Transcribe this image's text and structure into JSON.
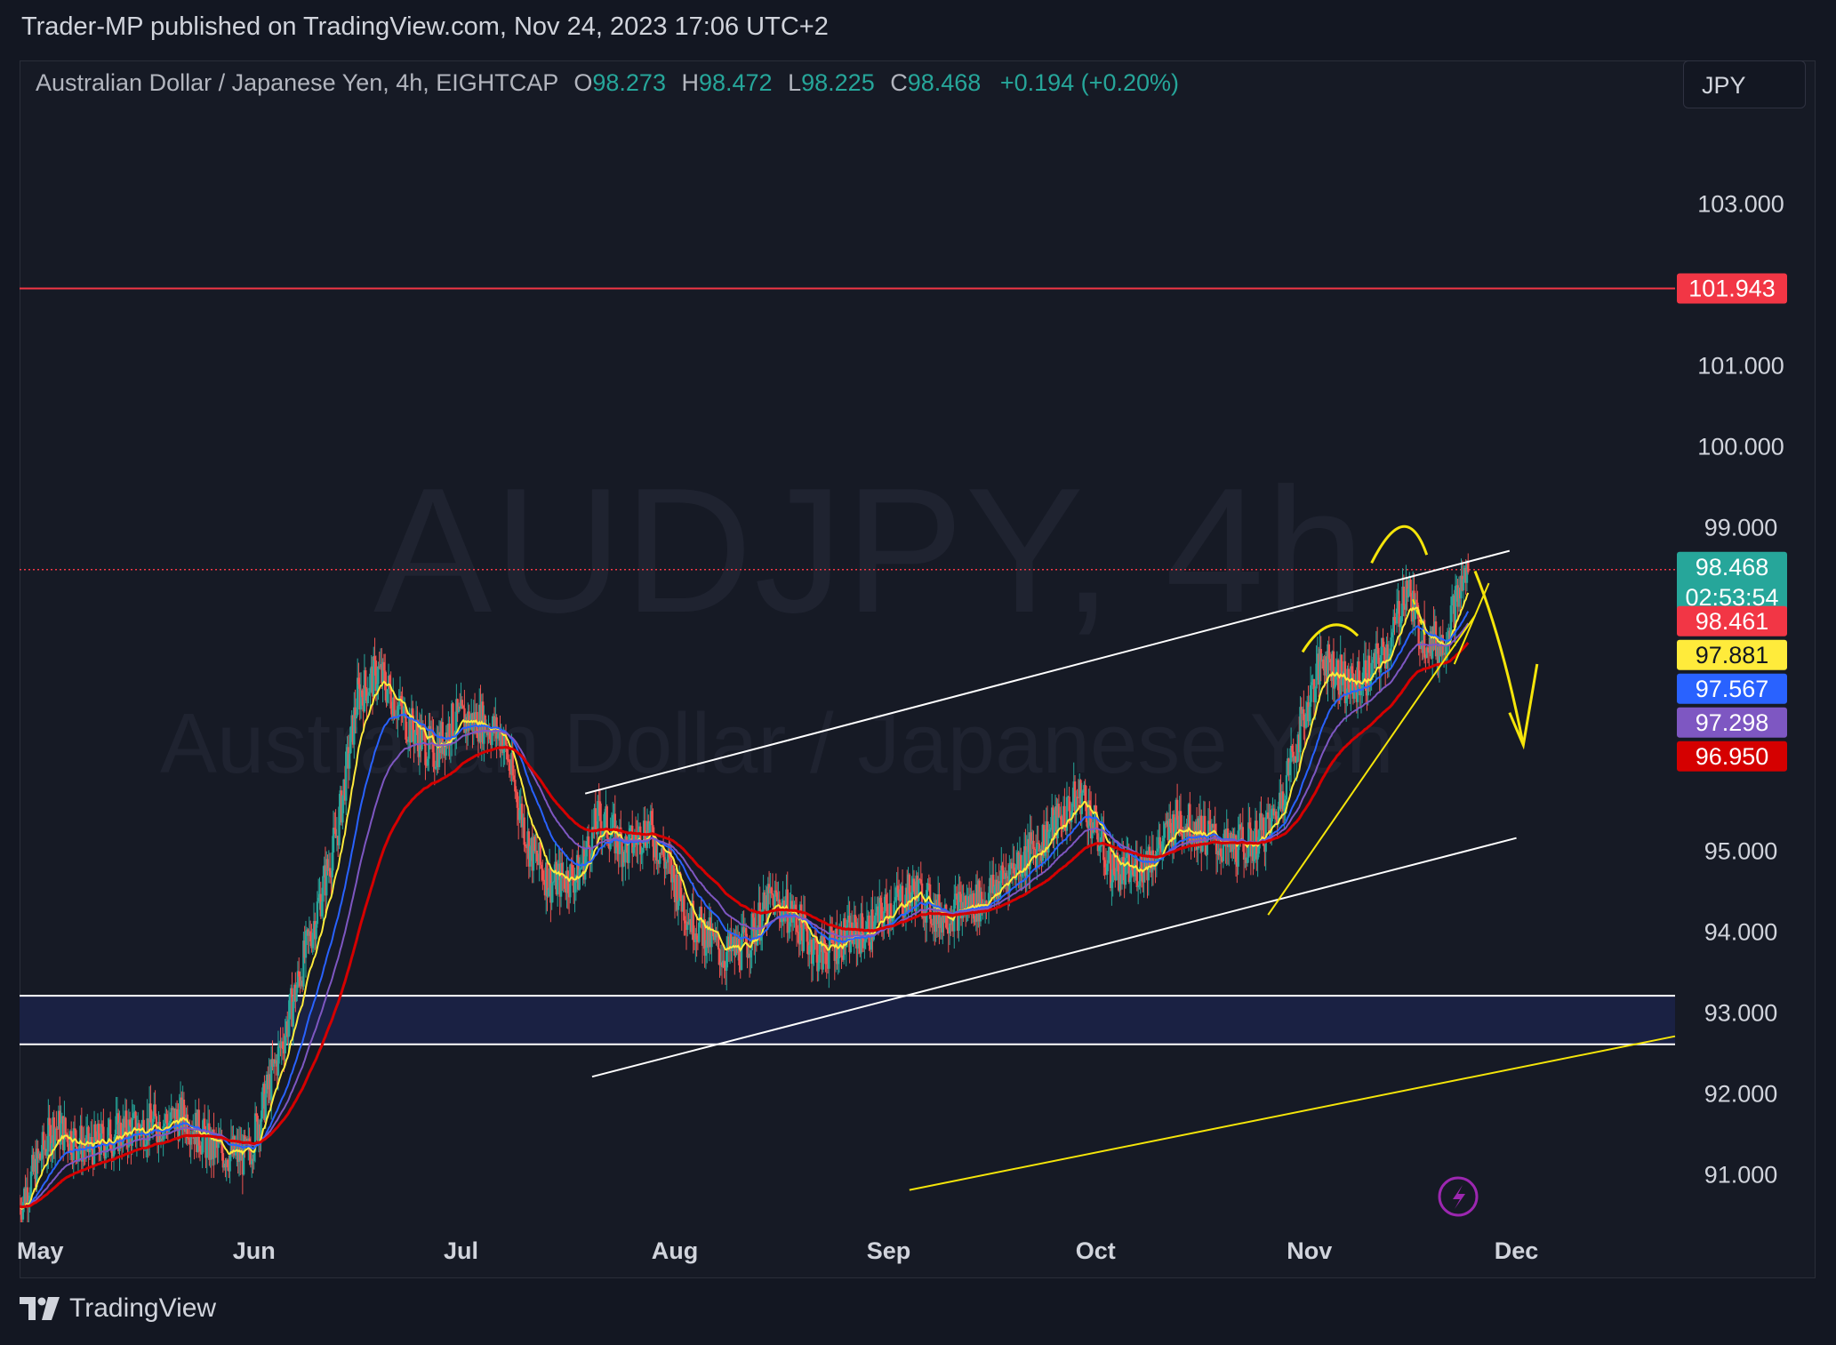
{
  "header": {
    "published_text": "Trader-MP published on TradingView.com, Nov 24, 2023 17:06 UTC+2"
  },
  "legend": {
    "title": "Australian Dollar / Japanese Yen, 4h, EIGHTCAP",
    "open_label": "O",
    "open": "98.273",
    "high_label": "H",
    "high": "98.472",
    "low_label": "L",
    "low": "98.225",
    "close_label": "C",
    "close": "98.468",
    "change": "+0.194 (+0.20%)"
  },
  "currency_button": "JPY",
  "watermark": {
    "symbol": "AUDJPY, 4h",
    "name": "Australian Dollar / Japanese Yen"
  },
  "footer": {
    "brand": "TradingView"
  },
  "colors": {
    "background": "#131722",
    "candle_up": "#26a69a",
    "candle_down": "#ef5350",
    "ema_yellow": "#ffeb3b",
    "ema_blue": "#2962ff",
    "ema_purple": "#7e57c2",
    "ema_red": "#d50000",
    "annotation_yellow": "#f5e50a",
    "channel_white": "#ffffff",
    "resistance_red": "#f23645"
  },
  "chart_data": {
    "type": "line",
    "symbol": "AUDJPY",
    "timeframe": "4h",
    "ylim": [
      90.4,
      104.3
    ],
    "y_ticks": [
      "103.000",
      "101.000",
      "100.000",
      "99.000",
      "95.000",
      "94.000",
      "93.000",
      "92.000",
      "91.000"
    ],
    "y_tick_values": [
      103,
      101,
      100,
      99,
      95,
      94,
      93,
      92,
      91
    ],
    "x_ticks": [
      "May",
      "Jun",
      "Jul",
      "Aug",
      "Sep",
      "Oct",
      "Nov",
      "Dec"
    ],
    "x_tick_values": [
      "2023-05-01",
      "2023-06-01",
      "2023-07-01",
      "2023-08-01",
      "2023-09-01",
      "2023-10-01",
      "2023-11-01",
      "2023-12-01"
    ],
    "xlim": [
      "2023-04-28",
      "2023-12-24"
    ],
    "price_path": {
      "dates": [
        "2023-04-28",
        "2023-05-03",
        "2023-05-08",
        "2023-05-12",
        "2023-05-17",
        "2023-05-22",
        "2023-05-26",
        "2023-05-31",
        "2023-06-05",
        "2023-06-09",
        "2023-06-13",
        "2023-06-16",
        "2023-06-19",
        "2023-06-23",
        "2023-06-27",
        "2023-06-30",
        "2023-07-04",
        "2023-07-07",
        "2023-07-11",
        "2023-07-14",
        "2023-07-18",
        "2023-07-21",
        "2023-07-25",
        "2023-07-28",
        "2023-07-31",
        "2023-08-03",
        "2023-08-08",
        "2023-08-11",
        "2023-08-15",
        "2023-08-18",
        "2023-08-22",
        "2023-08-25",
        "2023-08-29",
        "2023-09-01",
        "2023-09-05",
        "2023-09-08",
        "2023-09-12",
        "2023-09-15",
        "2023-09-19",
        "2023-09-22",
        "2023-09-26",
        "2023-09-29",
        "2023-10-03",
        "2023-10-06",
        "2023-10-10",
        "2023-10-13",
        "2023-10-17",
        "2023-10-20",
        "2023-10-24",
        "2023-10-27",
        "2023-10-31",
        "2023-11-03",
        "2023-11-07",
        "2023-11-10",
        "2023-11-13",
        "2023-11-15",
        "2023-11-17",
        "2023-11-20",
        "2023-11-22",
        "2023-11-24"
      ],
      "close": [
        90.6,
        91.6,
        91.3,
        91.5,
        91.6,
        91.7,
        91.3,
        91.2,
        92.6,
        93.9,
        95.2,
        96.9,
        97.2,
        96.6,
        96.2,
        96.6,
        96.6,
        96.4,
        95.0,
        94.6,
        94.7,
        95.4,
        95.0,
        95.3,
        94.8,
        94.2,
        93.7,
        93.8,
        94.4,
        94.2,
        93.7,
        93.9,
        94.0,
        94.3,
        94.5,
        94.2,
        94.3,
        94.4,
        94.8,
        95.0,
        95.4,
        95.7,
        94.8,
        94.7,
        95.0,
        95.4,
        95.2,
        95.0,
        95.1,
        95.4,
        96.6,
        97.4,
        97.0,
        97.2,
        97.6,
        98.3,
        97.7,
        97.5,
        98.0,
        98.47
      ]
    },
    "series": [
      {
        "name": "",
        "color": "#ffeb3b",
        "last_value": 97.881
      },
      {
        "name": "",
        "color": "#2962ff",
        "last_value": 97.567
      },
      {
        "name": "",
        "color": "#7e57c2",
        "last_value": 97.298
      },
      {
        "name": "",
        "color": "#d50000",
        "last_value": 96.95
      }
    ],
    "price_badges": [
      {
        "label": "101.943",
        "value": 101.943,
        "bg": "#f23645",
        "fg": "#ffffff"
      },
      {
        "label": "98.468",
        "value": 98.468,
        "bg": "#26a69a",
        "fg": "#ffffff",
        "countdown": "02:53:54"
      },
      {
        "label": "98.461",
        "value": 98.461,
        "bg": "#f23645",
        "fg": "#ffffff"
      },
      {
        "label": "97.881",
        "value": 97.881,
        "bg": "#ffeb3b",
        "fg": "#131722"
      },
      {
        "label": "97.567",
        "value": 97.567,
        "bg": "#2962ff",
        "fg": "#ffffff"
      },
      {
        "label": "97.298",
        "value": 97.298,
        "bg": "#7e57c2",
        "fg": "#ffffff"
      },
      {
        "label": "96.950",
        "value": 96.95,
        "bg": "#d50000",
        "fg": "#ffffff"
      }
    ],
    "levels": [
      {
        "value": 101.943,
        "color": "#f23645",
        "style": "solid"
      },
      {
        "value": 98.468,
        "color": "#f23645",
        "style": "dotted"
      }
    ],
    "zone": {
      "from": 92.6,
      "to": 93.2
    },
    "trendlines": [
      {
        "color": "#ffffff",
        "from": [
          "2023-07-19",
          95.7
        ],
        "to": [
          "2023-11-30",
          98.7
        ]
      },
      {
        "color": "#ffffff",
        "from": [
          "2023-07-20",
          92.2
        ],
        "to": [
          "2023-12-01",
          95.15
        ]
      },
      {
        "color": "#f5e50a",
        "from": [
          "2023-09-04",
          90.8
        ],
        "to": [
          "2023-12-24",
          92.7
        ]
      },
      {
        "color": "#f5e50a",
        "from": [
          "2023-10-26",
          94.2
        ],
        "to": [
          "2023-11-25",
          97.9
        ]
      },
      {
        "color": "#f5e50a",
        "from": [
          "2023-11-22",
          97.3
        ],
        "to": [
          "2023-11-27",
          98.3
        ]
      }
    ],
    "grid": false
  }
}
